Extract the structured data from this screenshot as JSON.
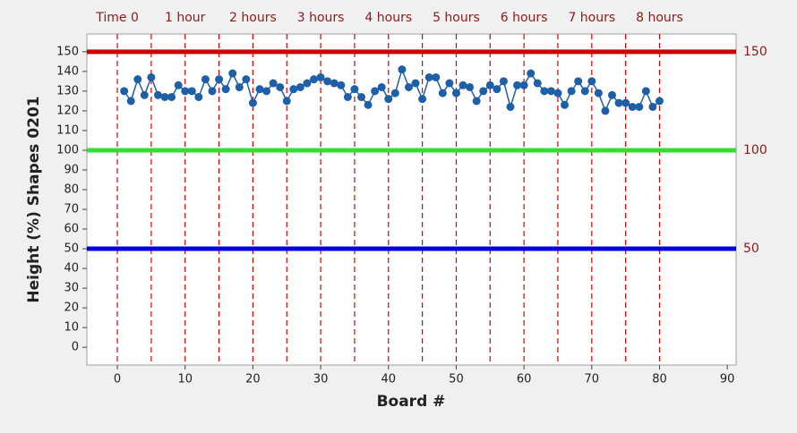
{
  "chart_data": {
    "type": "line",
    "x_label": "Board #",
    "y_label": "Height (%) Shapes 0201",
    "xlim": [
      -4.5,
      91.3
    ],
    "ylim": [
      -9,
      159
    ],
    "xticks": [
      0,
      10,
      20,
      30,
      40,
      50,
      60,
      70,
      80,
      90
    ],
    "yticks": [
      0,
      10,
      20,
      30,
      40,
      50,
      60,
      70,
      80,
      90,
      100,
      110,
      120,
      130,
      140,
      150
    ],
    "x": [
      1,
      2,
      3,
      4,
      5,
      6,
      7,
      8,
      9,
      10,
      11,
      12,
      13,
      14,
      15,
      16,
      17,
      18,
      19,
      20,
      21,
      22,
      23,
      24,
      25,
      26,
      27,
      28,
      29,
      30,
      31,
      32,
      33,
      34,
      35,
      36,
      37,
      38,
      39,
      40,
      41,
      42,
      43,
      44,
      45,
      46,
      47,
      48,
      49,
      50,
      51,
      52,
      53,
      54,
      55,
      56,
      57,
      58,
      59,
      60,
      61,
      62,
      63,
      64,
      65,
      66,
      67,
      68,
      69,
      70,
      71,
      72,
      73,
      74,
      75,
      76,
      77,
      78,
      79,
      80
    ],
    "series": [
      {
        "color": "#1f5fa8",
        "values": [
          130,
          125,
          136,
          128,
          137,
          128,
          127,
          127,
          133,
          130,
          130,
          127,
          136,
          130,
          136,
          131,
          139,
          132,
          136,
          124,
          131,
          130,
          134,
          132,
          125,
          131,
          132,
          134,
          136,
          137,
          135,
          134,
          133,
          127,
          131,
          127,
          123,
          130,
          132,
          126,
          129,
          141,
          132,
          134,
          126,
          137,
          137,
          129,
          134,
          129,
          133,
          132,
          125,
          130,
          133,
          131,
          135,
          122,
          133,
          133,
          139,
          134,
          130,
          130,
          129,
          123,
          130,
          135,
          130,
          135,
          129,
          120,
          128,
          124,
          124,
          122,
          122,
          130,
          122,
          125
        ]
      }
    ],
    "reference_lines": [
      {
        "value": 150,
        "color": "#cc0000"
      },
      {
        "value": 100,
        "color": "#33dd33"
      },
      {
        "value": 50,
        "color": "#0000dd"
      }
    ],
    "vlines": [
      0,
      5,
      10,
      15,
      20,
      25,
      30,
      35,
      40,
      45,
      50,
      55,
      60,
      65,
      70,
      75,
      80
    ],
    "vline_color": "#dd0000",
    "time_markers": [
      {
        "x": 0,
        "label": "Time 0"
      },
      {
        "x": 10,
        "label": "1 hour"
      },
      {
        "x": 20,
        "label": "2 hours"
      },
      {
        "x": 30,
        "label": "3 hours"
      },
      {
        "x": 40,
        "label": "4 hours"
      },
      {
        "x": 50,
        "label": "5 hours"
      },
      {
        "x": 60,
        "label": "6 hours"
      },
      {
        "x": 70,
        "label": "7 hours"
      },
      {
        "x": 80,
        "label": "8 hours"
      }
    ]
  }
}
